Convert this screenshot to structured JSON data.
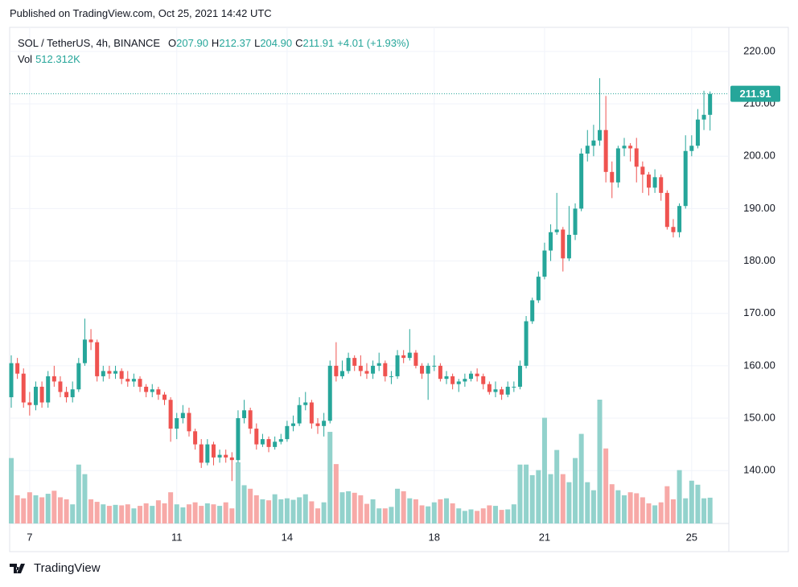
{
  "published": "Published on TradingView.com, Oct 25, 2021 14:42 UTC",
  "footer": "TradingView",
  "chart_data": {
    "type": "candlestick",
    "title": "SOL / TetherUS, 4h, BINANCE",
    "legend": [
      {
        "key": "O",
        "label": "207.90"
      },
      {
        "key": "H",
        "label": "212.37"
      },
      {
        "key": "L",
        "label": "204.90"
      },
      {
        "key": "C",
        "label": "211.91"
      }
    ],
    "change": "+4.01 (+1.93%)",
    "colors": {
      "up": "#26a69a",
      "down": "#ef5350",
      "volume_up": "#92d2cc",
      "volume_down": "#f7a9a7"
    },
    "grid": true,
    "ylim": [
      129.9,
      224.6
    ],
    "yticks": [
      {
        "value": 140,
        "label": "140.00"
      },
      {
        "value": 150,
        "label": "150.00"
      },
      {
        "value": 160,
        "label": "160.00"
      },
      {
        "value": 170,
        "label": "170.00"
      },
      {
        "value": 180,
        "label": "180.00"
      },
      {
        "value": 190,
        "label": "190.00"
      },
      {
        "value": 200,
        "label": "200.00"
      },
      {
        "value": 210,
        "label": "210.00"
      },
      {
        "value": 220,
        "label": "220.00"
      }
    ],
    "categories": [
      null,
      null,
      null,
      "7",
      null,
      null,
      null,
      null,
      null,
      null,
      null,
      null,
      null,
      null,
      null,
      null,
      null,
      null,
      null,
      null,
      null,
      null,
      null,
      null,
      null,
      null,
      null,
      "11",
      null,
      null,
      null,
      null,
      null,
      null,
      null,
      null,
      null,
      null,
      null,
      null,
      null,
      null,
      null,
      null,
      null,
      "14",
      null,
      null,
      null,
      null,
      null,
      null,
      null,
      null,
      null,
      null,
      null,
      null,
      null,
      null,
      null,
      null,
      null,
      null,
      null,
      null,
      null,
      null,
      null,
      "18",
      null,
      null,
      null,
      null,
      null,
      null,
      null,
      null,
      null,
      null,
      null,
      null,
      null,
      null,
      null,
      null,
      null,
      "21",
      null,
      null,
      null,
      null,
      null,
      null,
      null,
      null,
      null,
      null,
      null,
      null,
      null,
      null,
      null,
      null,
      null,
      null,
      null,
      null,
      null,
      null,
      null,
      "25",
      null,
      null,
      null
    ],
    "open": [
      154,
      160.5,
      158.5,
      153,
      152.5,
      156,
      153,
      158,
      157,
      155,
      154,
      155.5,
      160.5,
      165,
      164.5,
      158,
      159,
      158.5,
      159,
      157.5,
      157,
      157.5,
      156,
      155,
      155.5,
      154.5,
      153.5,
      148,
      150,
      151,
      147.5,
      145,
      141.5,
      145,
      142.5,
      143,
      142.5,
      142,
      150,
      151.5,
      148,
      145,
      146,
      144.5,
      145.5,
      146,
      148.5,
      149,
      152.5,
      153,
      149,
      148.5,
      149.5,
      160,
      158,
      159,
      161.5,
      160,
      159,
      158.5,
      160,
      160.5,
      158,
      158,
      162,
      161.5,
      162.5,
      160,
      158.5,
      160,
      160,
      157.5,
      158,
      156.5,
      157,
      157.5,
      158.5,
      158,
      156.5,
      155,
      155.5,
      154.5,
      156,
      156,
      160,
      168.5,
      172.5,
      177,
      182,
      185.5,
      186,
      180.5,
      185,
      190,
      200.5,
      202,
      203,
      205,
      197,
      195,
      201.5,
      202,
      201.5,
      198,
      196.5,
      194,
      196,
      193,
      186.5,
      185.5,
      190.5,
      201,
      202,
      207,
      207.9
    ],
    "high": [
      162,
      161.5,
      159.5,
      155,
      157,
      157,
      159,
      160,
      158,
      156,
      157,
      161.5,
      169,
      167,
      165,
      160,
      160,
      160,
      159.5,
      159,
      158.5,
      158,
      156.5,
      156.5,
      156,
      155,
      154,
      151,
      152.5,
      152,
      148,
      146,
      146,
      145.5,
      144,
      144,
      143.5,
      151.5,
      153.5,
      152,
      149,
      147,
      146.5,
      146.5,
      147,
      149.5,
      150.5,
      154,
      155,
      153.5,
      150,
      151,
      161,
      164.5,
      161,
      162.5,
      162,
      162,
      160.5,
      161,
      162.5,
      161,
      159,
      163,
      163,
      167,
      163,
      160.5,
      160.5,
      162,
      160.5,
      159,
      158.5,
      157.5,
      158.5,
      159,
      159.5,
      158.5,
      157,
      157,
      156,
      157,
      157,
      161,
      169.5,
      173,
      178,
      183.5,
      187,
      193,
      186.5,
      190.5,
      191,
      201.5,
      205,
      206,
      214.9,
      211.5,
      199,
      202,
      203.5,
      202.5,
      203.5,
      199,
      197,
      197.5,
      196.5,
      193.5,
      188,
      191,
      204,
      204,
      209,
      212.5,
      212.37
    ],
    "low": [
      152,
      157.5,
      152,
      150.5,
      151.5,
      152,
      152,
      156,
      154,
      153,
      153,
      155,
      160,
      163,
      157,
      157,
      157.5,
      157.5,
      156.5,
      156,
      156,
      155,
      154,
      154,
      153.5,
      152.5,
      145.5,
      146,
      149,
      146.5,
      144,
      140.5,
      141,
      141,
      141.5,
      141.5,
      138,
      141.5,
      149,
      147,
      144,
      144.5,
      143.5,
      144,
      145,
      145.5,
      147.5,
      148.5,
      151.5,
      148,
      147,
      146.5,
      149,
      157,
      157.5,
      158.5,
      159,
      158,
      157.5,
      157.5,
      159,
      157,
      156.5,
      157.5,
      160.5,
      161,
      159.5,
      157.5,
      153.5,
      159,
      157,
      156.5,
      155.5,
      155,
      156,
      157,
      157,
      155.5,
      154.5,
      154,
      153.5,
      154,
      155,
      155.5,
      159.5,
      168,
      172,
      176.5,
      180,
      185,
      178,
      180,
      184,
      189.5,
      199,
      200,
      202,
      195,
      192,
      194,
      200,
      199,
      195,
      193,
      192.5,
      193,
      191.5,
      186,
      184.5,
      184.5,
      190,
      200,
      201.5,
      205,
      204.9
    ],
    "close": [
      160.5,
      158.5,
      153,
      152.5,
      156,
      153,
      158,
      157,
      155,
      154,
      155.5,
      160.5,
      165,
      164.5,
      158,
      159,
      158.5,
      159,
      157.5,
      157,
      157.5,
      156,
      155,
      155.5,
      154.5,
      153.5,
      148,
      150,
      151,
      147.5,
      145,
      141.5,
      145,
      142.5,
      143,
      142.5,
      142,
      150,
      151.5,
      148,
      145,
      146,
      144.5,
      145.5,
      146,
      148.5,
      149,
      152.5,
      153,
      149,
      148.5,
      149.5,
      160,
      158,
      159,
      161.5,
      160,
      159,
      158.5,
      160,
      160.5,
      158,
      158,
      162,
      161.5,
      162.5,
      160,
      158.5,
      160,
      160,
      157.5,
      158,
      156.5,
      157,
      157.5,
      158.5,
      158,
      156.5,
      155,
      155.5,
      154.5,
      156,
      156,
      160,
      168.5,
      172.5,
      177,
      182,
      185.5,
      186,
      180.5,
      185,
      190,
      200.5,
      202,
      203,
      205,
      197,
      195,
      201.5,
      202,
      201.5,
      198,
      196.5,
      194,
      196,
      193,
      186.5,
      185.5,
      190.5,
      201,
      202,
      207,
      207.9,
      211.91
    ],
    "volume": {
      "name": "Vol",
      "label": "512.312K",
      "values": [
        1300,
        560,
        500,
        620,
        560,
        520,
        590,
        650,
        520,
        480,
        380,
        1170,
        980,
        480,
        430,
        380,
        350,
        370,
        360,
        380,
        300,
        350,
        400,
        350,
        460,
        400,
        620,
        380,
        320,
        380,
        420,
        350,
        400,
        380,
        350,
        420,
        300,
        1215,
        760,
        690,
        560,
        480,
        460,
        580,
        480,
        500,
        470,
        520,
        580,
        440,
        300,
        420,
        1820,
        1180,
        620,
        640,
        610,
        560,
        390,
        480,
        300,
        300,
        330,
        690,
        640,
        500,
        480,
        360,
        340,
        420,
        480,
        500,
        400,
        300,
        250,
        280,
        250,
        300,
        360,
        350,
        270,
        280,
        380,
        1170,
        1170,
        960,
        1060,
        2100,
        980,
        1460,
        980,
        820,
        1300,
        1780,
        820,
        660,
        2460,
        1490,
        780,
        660,
        560,
        620,
        600,
        520,
        400,
        360,
        420,
        740,
        480,
        1060,
        500,
        850,
        770,
        500,
        512.312
      ]
    }
  }
}
